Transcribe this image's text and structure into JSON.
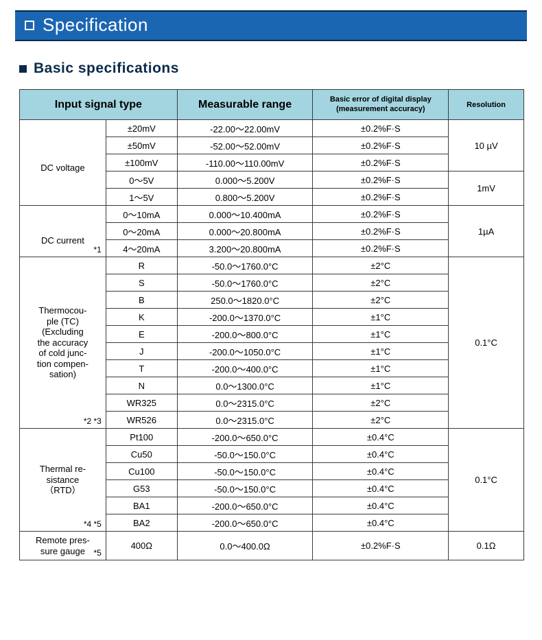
{
  "colors": {
    "banner_bg": "#1b66b2",
    "banner_border": "#0a2a4a",
    "banner_text": "#ffffff",
    "header_bg": "#a3d5e0",
    "cell_border": "#3a3a3a",
    "subhead_text": "#0a2a4a"
  },
  "banner": {
    "title": "Specification"
  },
  "subhead": {
    "text": "Basic specifications"
  },
  "table": {
    "headers": {
      "input": "Input signal type",
      "range": "Measurable range",
      "error": "Basic error of digital display\n(measurement accuracy)",
      "resolution": "Resolution"
    },
    "groups": [
      {
        "label": "DC voltage",
        "label_html": "DC voltage",
        "note": "",
        "rows": [
          {
            "sub": "±20mV",
            "range": "-22.00～22.00mV",
            "err": "±0.2%F·S"
          },
          {
            "sub": "±50mV",
            "range": "-52.00～52.00mV",
            "err": "±0.2%F·S"
          },
          {
            "sub": "±100mV",
            "range": "-110.00～110.00mV",
            "err": "±0.2%F·S"
          },
          {
            "sub": "0～5V",
            "range": "0.000～5.200V",
            "err": "±0.2%F·S"
          },
          {
            "sub": "1～5V",
            "range": "0.800～5.200V",
            "err": "±0.2%F·S"
          }
        ],
        "res_blocks": [
          {
            "span": 3,
            "text": "10 µV"
          },
          {
            "span": 2,
            "text": "1mV"
          }
        ]
      },
      {
        "label": "DC current",
        "label_html": "DC current",
        "note": "*1",
        "rows": [
          {
            "sub": "0～10mA",
            "range": "0.000～10.400mA",
            "err": "±0.2%F·S"
          },
          {
            "sub": "0～20mA",
            "range": "0.000～20.800mA",
            "err": "±0.2%F·S"
          },
          {
            "sub": "4～20mA",
            "range": "3.200～20.800mA",
            "err": "±0.2%F·S"
          }
        ],
        "res_blocks": [
          {
            "span": 3,
            "text": "1µA"
          }
        ]
      },
      {
        "label": "Thermocouple (TC)",
        "label_html": "Thermocou-\nple (TC)\n(Excluding\nthe accuracy\nof cold junc-\ntion compen-\nsation)",
        "note": "*2 *3",
        "rows": [
          {
            "sub": "R",
            "range": "-50.0～1760.0°C",
            "err": "±2°C"
          },
          {
            "sub": "S",
            "range": "-50.0～1760.0°C",
            "err": "±2°C"
          },
          {
            "sub": "B",
            "range": "250.0～1820.0°C",
            "err": "±2°C"
          },
          {
            "sub": "K",
            "range": "-200.0～1370.0°C",
            "err": "±1°C"
          },
          {
            "sub": "E",
            "range": "-200.0～800.0°C",
            "err": "±1°C"
          },
          {
            "sub": "J",
            "range": "-200.0～1050.0°C",
            "err": "±1°C"
          },
          {
            "sub": "T",
            "range": "-200.0～400.0°C",
            "err": "±1°C"
          },
          {
            "sub": "N",
            "range": "0.0～1300.0°C",
            "err": "±1°C"
          },
          {
            "sub": "WR325",
            "range": "0.0～2315.0°C",
            "err": "±2°C"
          },
          {
            "sub": "WR526",
            "range": "0.0～2315.0°C",
            "err": "±2°C"
          }
        ],
        "res_blocks": [
          {
            "span": 10,
            "text": "0.1°C"
          }
        ]
      },
      {
        "label": "Thermal resistance (RTD)",
        "label_html": "Thermal re-\nsistance\n（RTD）",
        "note": "*4 *5",
        "rows": [
          {
            "sub": "Pt100",
            "range": "-200.0～650.0°C",
            "err": "±0.4°C"
          },
          {
            "sub": "Cu50",
            "range": "-50.0～150.0°C",
            "err": "±0.4°C"
          },
          {
            "sub": "Cu100",
            "range": "-50.0～150.0°C",
            "err": "±0.4°C"
          },
          {
            "sub": "G53",
            "range": "-50.0～150.0°C",
            "err": "±0.4°C"
          },
          {
            "sub": "BA1",
            "range": "-200.0～650.0°C",
            "err": "±0.4°C"
          },
          {
            "sub": "BA2",
            "range": "-200.0～650.0°C",
            "err": "±0.4°C"
          }
        ],
        "res_blocks": [
          {
            "span": 6,
            "text": "0.1°C"
          }
        ]
      },
      {
        "label": "Remote pressure gauge",
        "label_html": "Remote pres-\nsure gauge",
        "note": "*5",
        "rows": [
          {
            "sub": "400Ω",
            "range": "0.0～400.0Ω",
            "err": "±0.2%F·S"
          }
        ],
        "res_blocks": [
          {
            "span": 1,
            "text": "0.1Ω"
          }
        ]
      }
    ]
  }
}
